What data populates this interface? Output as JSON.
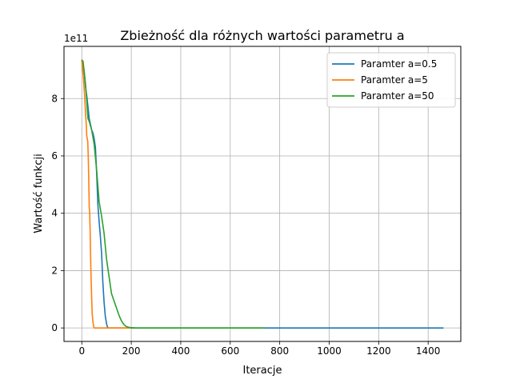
{
  "chart_data": {
    "type": "line",
    "title": "Zbieżność dla różnych wartości parametru a",
    "xlabel": "Iteracje",
    "ylabel": "Wartość funkcji",
    "y_scale_label": "1e11",
    "xlim": [
      -72,
      1532
    ],
    "ylim": [
      -0.47,
      9.82
    ],
    "x_ticks": [
      0,
      200,
      400,
      600,
      800,
      1000,
      1200,
      1400
    ],
    "y_ticks": [
      0,
      2,
      4,
      6,
      8
    ],
    "grid": true,
    "legend_position": "top-right",
    "series": [
      {
        "name": "Paramter a=0.5",
        "color": "#1f77b4",
        "x": [
          0,
          5,
          10,
          15,
          20,
          25,
          30,
          35,
          40,
          45,
          50,
          55,
          60,
          65,
          70,
          75,
          80,
          85,
          90,
          95,
          100,
          103,
          106,
          110,
          200,
          400,
          600,
          800,
          1000,
          1200,
          1400,
          1462
        ],
        "y": [
          9.35,
          9.2,
          8.9,
          8.4,
          8.1,
          7.7,
          7.3,
          7.1,
          6.9,
          6.8,
          6.6,
          6.3,
          5.4,
          4.3,
          3.7,
          3.2,
          2.6,
          1.6,
          0.9,
          0.4,
          0.15,
          0.05,
          0.0,
          0.0,
          0.0,
          0.0,
          0.0,
          0.0,
          0.0,
          0.0,
          0.0,
          0.0
        ]
      },
      {
        "name": "Paramter a=5",
        "color": "#ff7f0e",
        "x": [
          0,
          3,
          6,
          9,
          12,
          15,
          18,
          20,
          22,
          24,
          26,
          28,
          30,
          32,
          34,
          36,
          38,
          40,
          42,
          44,
          46,
          48,
          50,
          52,
          55,
          60,
          80,
          100,
          150,
          200
        ],
        "y": [
          9.35,
          9.0,
          8.8,
          8.4,
          8.0,
          7.5,
          7.1,
          6.7,
          6.6,
          6.5,
          6.0,
          5.2,
          4.2,
          4.0,
          3.2,
          2.3,
          1.6,
          1.0,
          0.5,
          0.3,
          0.15,
          0.05,
          0.0,
          0.0,
          0.0,
          0.0,
          0.0,
          0.0,
          0.0,
          0.0
        ]
      },
      {
        "name": "Paramter a=50",
        "color": "#2ca02c",
        "x": [
          0,
          5,
          10,
          15,
          20,
          25,
          30,
          40,
          50,
          60,
          70,
          80,
          90,
          100,
          110,
          120,
          130,
          140,
          150,
          160,
          170,
          180,
          190,
          200,
          220,
          300,
          400,
          500,
          600,
          700,
          740
        ],
        "y": [
          9.35,
          9.3,
          8.9,
          8.5,
          7.9,
          7.3,
          7.2,
          6.9,
          6.4,
          5.5,
          4.4,
          3.9,
          3.3,
          2.4,
          1.8,
          1.2,
          0.95,
          0.7,
          0.45,
          0.25,
          0.12,
          0.05,
          0.02,
          0.01,
          0.0,
          0.0,
          0.0,
          0.0,
          0.0,
          0.0,
          0.0
        ]
      }
    ]
  }
}
